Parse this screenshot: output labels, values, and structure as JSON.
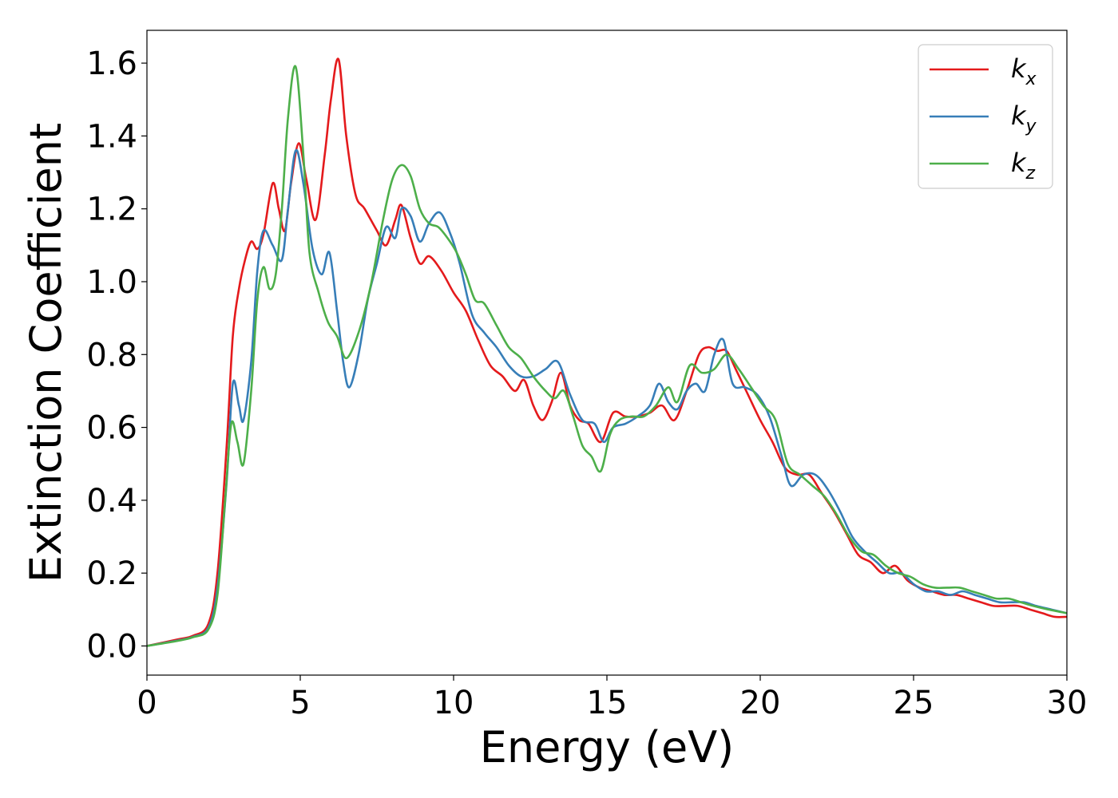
{
  "chart_data": {
    "type": "line",
    "xlabel": "Energy (eV)",
    "ylabel": "Extinction Coefficient",
    "xlim": [
      0,
      30
    ],
    "ylim": [
      -0.08,
      1.69
    ],
    "xticks": [
      0,
      5,
      10,
      15,
      20,
      25,
      30
    ],
    "xtick_labels": [
      "0",
      "5",
      "10",
      "15",
      "20",
      "25",
      "30"
    ],
    "yticks": [
      0.0,
      0.2,
      0.4,
      0.6,
      0.8,
      1.0,
      1.2,
      1.4,
      1.6
    ],
    "ytick_labels": [
      "0.0",
      "0.2",
      "0.4",
      "0.6",
      "0.8",
      "1.0",
      "1.2",
      "1.4",
      "1.6"
    ],
    "grid": false,
    "legend_position": "top-right",
    "series": [
      {
        "name": "k_x",
        "label_base": "k",
        "label_sub": "x",
        "color": "#e41a1c",
        "x": [
          0,
          1,
          1.5,
          2.0,
          2.3,
          2.6,
          2.8,
          3.0,
          3.2,
          3.4,
          3.6,
          3.8,
          4.1,
          4.3,
          4.5,
          4.7,
          4.95,
          5.2,
          5.5,
          5.8,
          6.0,
          6.25,
          6.5,
          6.8,
          7.1,
          7.5,
          7.8,
          8.1,
          8.3,
          8.6,
          8.9,
          9.2,
          9.6,
          10.0,
          10.4,
          10.8,
          11.2,
          11.6,
          12.0,
          12.3,
          12.6,
          12.9,
          13.2,
          13.5,
          13.8,
          14.1,
          14.4,
          14.8,
          15.2,
          15.6,
          16.0,
          16.4,
          16.8,
          17.2,
          17.6,
          18.0,
          18.3,
          18.6,
          18.9,
          19.2,
          19.6,
          20.0,
          20.4,
          20.8,
          21.2,
          21.6,
          22.0,
          22.4,
          22.8,
          23.2,
          23.6,
          24.0,
          24.4,
          24.8,
          25.2,
          25.6,
          26.0,
          26.4,
          26.8,
          27.2,
          27.6,
          28.0,
          28.4,
          28.8,
          29.2,
          29.6,
          30.0
        ],
        "y": [
          0.0,
          0.018,
          0.028,
          0.06,
          0.2,
          0.55,
          0.85,
          0.98,
          1.06,
          1.11,
          1.09,
          1.13,
          1.27,
          1.2,
          1.14,
          1.27,
          1.38,
          1.28,
          1.17,
          1.35,
          1.5,
          1.61,
          1.4,
          1.24,
          1.2,
          1.14,
          1.1,
          1.17,
          1.21,
          1.12,
          1.05,
          1.07,
          1.03,
          0.97,
          0.92,
          0.84,
          0.77,
          0.74,
          0.7,
          0.73,
          0.66,
          0.62,
          0.67,
          0.75,
          0.66,
          0.62,
          0.61,
          0.56,
          0.64,
          0.63,
          0.63,
          0.64,
          0.66,
          0.62,
          0.7,
          0.8,
          0.82,
          0.81,
          0.81,
          0.76,
          0.69,
          0.62,
          0.56,
          0.49,
          0.47,
          0.47,
          0.42,
          0.37,
          0.31,
          0.25,
          0.23,
          0.2,
          0.22,
          0.18,
          0.16,
          0.15,
          0.14,
          0.14,
          0.13,
          0.12,
          0.11,
          0.11,
          0.11,
          0.1,
          0.09,
          0.08,
          0.08
        ]
      },
      {
        "name": "k_y",
        "label_base": "k",
        "label_sub": "y",
        "color": "#377eb8",
        "x": [
          0,
          1,
          1.5,
          2.0,
          2.3,
          2.6,
          2.8,
          3.0,
          3.15,
          3.4,
          3.6,
          3.8,
          4.1,
          4.4,
          4.6,
          4.85,
          5.1,
          5.4,
          5.7,
          5.95,
          6.2,
          6.4,
          6.6,
          6.9,
          7.2,
          7.5,
          7.8,
          8.1,
          8.3,
          8.6,
          8.9,
          9.2,
          9.55,
          9.9,
          10.2,
          10.6,
          11.0,
          11.4,
          11.8,
          12.2,
          12.6,
          13.0,
          13.4,
          13.8,
          14.2,
          14.6,
          14.9,
          15.2,
          15.6,
          16.0,
          16.4,
          16.7,
          17.0,
          17.3,
          17.6,
          17.9,
          18.2,
          18.5,
          18.8,
          19.1,
          19.5,
          19.9,
          20.3,
          20.7,
          21.0,
          21.4,
          21.8,
          22.2,
          22.6,
          23.0,
          23.4,
          23.8,
          24.2,
          24.6,
          25.0,
          25.4,
          25.8,
          26.2,
          26.6,
          27.0,
          27.4,
          27.8,
          28.2,
          28.6,
          29.0,
          29.5,
          30.0
        ],
        "y": [
          0.0,
          0.015,
          0.025,
          0.05,
          0.16,
          0.45,
          0.72,
          0.66,
          0.62,
          0.78,
          1.03,
          1.14,
          1.1,
          1.06,
          1.2,
          1.36,
          1.27,
          1.09,
          1.02,
          1.08,
          0.92,
          0.78,
          0.71,
          0.8,
          0.95,
          1.05,
          1.15,
          1.12,
          1.2,
          1.18,
          1.11,
          1.16,
          1.19,
          1.13,
          1.05,
          0.91,
          0.86,
          0.82,
          0.77,
          0.74,
          0.74,
          0.76,
          0.78,
          0.69,
          0.62,
          0.61,
          0.56,
          0.6,
          0.61,
          0.63,
          0.66,
          0.72,
          0.67,
          0.65,
          0.7,
          0.72,
          0.7,
          0.8,
          0.84,
          0.72,
          0.71,
          0.69,
          0.63,
          0.52,
          0.44,
          0.47,
          0.47,
          0.43,
          0.37,
          0.3,
          0.26,
          0.23,
          0.2,
          0.2,
          0.17,
          0.15,
          0.15,
          0.14,
          0.15,
          0.14,
          0.13,
          0.12,
          0.12,
          0.12,
          0.11,
          0.1,
          0.09
        ]
      },
      {
        "name": "k_z",
        "label_base": "k",
        "label_sub": "z",
        "color": "#4daf4a",
        "x": [
          0,
          1,
          1.5,
          2.0,
          2.3,
          2.55,
          2.75,
          2.95,
          3.15,
          3.4,
          3.6,
          3.8,
          4.0,
          4.2,
          4.4,
          4.6,
          4.85,
          5.1,
          5.3,
          5.6,
          5.9,
          6.2,
          6.5,
          6.9,
          7.3,
          7.7,
          8.0,
          8.3,
          8.6,
          8.9,
          9.2,
          9.5,
          9.8,
          10.1,
          10.4,
          10.7,
          11.0,
          11.4,
          11.8,
          12.2,
          12.6,
          13.0,
          13.3,
          13.6,
          13.9,
          14.2,
          14.5,
          14.8,
          15.1,
          15.4,
          15.8,
          16.2,
          16.6,
          17.0,
          17.3,
          17.7,
          18.1,
          18.5,
          18.9,
          19.3,
          19.7,
          20.1,
          20.5,
          20.9,
          21.3,
          21.7,
          22.1,
          22.5,
          22.9,
          23.3,
          23.7,
          24.1,
          24.5,
          24.9,
          25.3,
          25.7,
          26.1,
          26.5,
          26.9,
          27.3,
          27.7,
          28.1,
          28.5,
          28.9,
          29.4,
          30.0
        ],
        "y": [
          0.0,
          0.014,
          0.024,
          0.045,
          0.14,
          0.4,
          0.61,
          0.56,
          0.5,
          0.7,
          0.95,
          1.04,
          0.98,
          1.02,
          1.2,
          1.45,
          1.59,
          1.35,
          1.08,
          0.97,
          0.89,
          0.85,
          0.79,
          0.86,
          0.99,
          1.17,
          1.28,
          1.32,
          1.29,
          1.2,
          1.16,
          1.15,
          1.12,
          1.08,
          1.02,
          0.95,
          0.94,
          0.88,
          0.82,
          0.79,
          0.74,
          0.7,
          0.68,
          0.7,
          0.63,
          0.55,
          0.52,
          0.48,
          0.58,
          0.62,
          0.63,
          0.63,
          0.66,
          0.71,
          0.67,
          0.77,
          0.75,
          0.76,
          0.8,
          0.76,
          0.71,
          0.66,
          0.62,
          0.5,
          0.47,
          0.44,
          0.41,
          0.36,
          0.3,
          0.26,
          0.25,
          0.22,
          0.2,
          0.19,
          0.17,
          0.16,
          0.16,
          0.16,
          0.15,
          0.14,
          0.13,
          0.13,
          0.12,
          0.11,
          0.1,
          0.09
        ]
      }
    ]
  }
}
